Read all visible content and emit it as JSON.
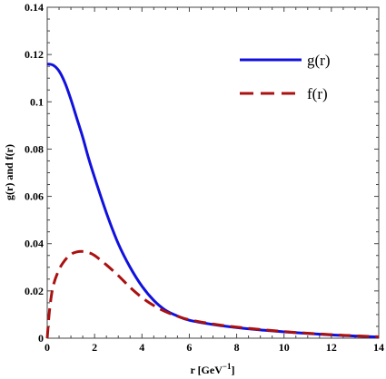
{
  "chart_data": {
    "type": "line",
    "xlabel": "r [GeV",
    "xlabel_sup": "−1",
    "xlabel_tail": "]",
    "ylabel": "g(r) and f(r)",
    "xlim": [
      0,
      14
    ],
    "ylim": [
      0,
      0.14
    ],
    "x_ticks": [
      "0",
      "2",
      "4",
      "6",
      "8",
      "10",
      "12",
      "14"
    ],
    "y_ticks": [
      "0",
      "0.02",
      "0.04",
      "0.06",
      "0.08",
      "0.1",
      "0.12",
      "0.14"
    ],
    "legend_position": "top-right",
    "grid": false,
    "series": [
      {
        "name": "g(r)",
        "color": "#1111dd",
        "style": "solid",
        "x": [
          0,
          0.25,
          0.5,
          0.75,
          1,
          1.25,
          1.5,
          1.75,
          2,
          2.5,
          3,
          3.5,
          4,
          4.5,
          5,
          5.5,
          6,
          7,
          8,
          9,
          10,
          11,
          12,
          13,
          14
        ],
        "y": [
          0.116,
          0.1155,
          0.113,
          0.108,
          0.101,
          0.093,
          0.085,
          0.076,
          0.068,
          0.053,
          0.04,
          0.03,
          0.022,
          0.016,
          0.0118,
          0.0094,
          0.0076,
          0.0058,
          0.0045,
          0.0035,
          0.0027,
          0.002,
          0.0014,
          0.0009,
          0.0005
        ]
      },
      {
        "name": "f(r)",
        "color": "#aa1111",
        "style": "dashed",
        "x": [
          0,
          0.1,
          0.25,
          0.5,
          0.75,
          1,
          1.25,
          1.5,
          1.75,
          2,
          2.5,
          3,
          3.5,
          4,
          4.5,
          5,
          5.5,
          6,
          7,
          8,
          9,
          10,
          11,
          12,
          13,
          14
        ],
        "y": [
          0,
          0.012,
          0.022,
          0.029,
          0.033,
          0.0355,
          0.0365,
          0.0367,
          0.0362,
          0.035,
          0.031,
          0.0265,
          0.0215,
          0.0172,
          0.0138,
          0.0112,
          0.0093,
          0.0078,
          0.006,
          0.0047,
          0.0037,
          0.0028,
          0.0021,
          0.0015,
          0.001,
          0.0006
        ]
      }
    ]
  }
}
